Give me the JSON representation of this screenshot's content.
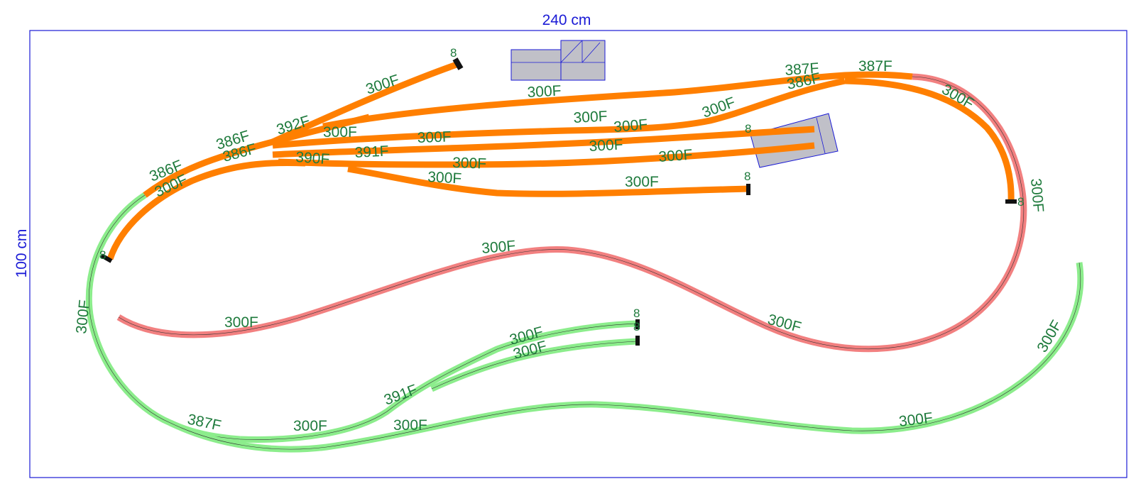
{
  "layout": {
    "width_label": "240 cm",
    "height_label": "100 cm"
  },
  "colors": {
    "board_border": "#1a1ad6",
    "track_orange": "#ff7f00",
    "track_pink": "#f28080",
    "track_green": "#8ced8c",
    "building_fill": "#c0c0c8",
    "building_stroke": "#1a1ad6",
    "label_green": "#1e7a3c",
    "buffer_stop": "#111111"
  },
  "track_labels": [
    "300F",
    "392F",
    "386F",
    "386F",
    "386F",
    "300F",
    "300F",
    "300F",
    "390F",
    "391F",
    "300F",
    "300F",
    "300F",
    "300F",
    "300F",
    "300F",
    "300F",
    "300F",
    "387F",
    "386F",
    "387F",
    "300F",
    "300F",
    "300F",
    "300F",
    "300F",
    "300F",
    "300F",
    "300F",
    "391F",
    "387F",
    "300F",
    "300F",
    "300F",
    "300F",
    "300F"
  ],
  "end_labels": [
    "8",
    "8",
    "8",
    "8",
    "8",
    "8",
    "8"
  ]
}
